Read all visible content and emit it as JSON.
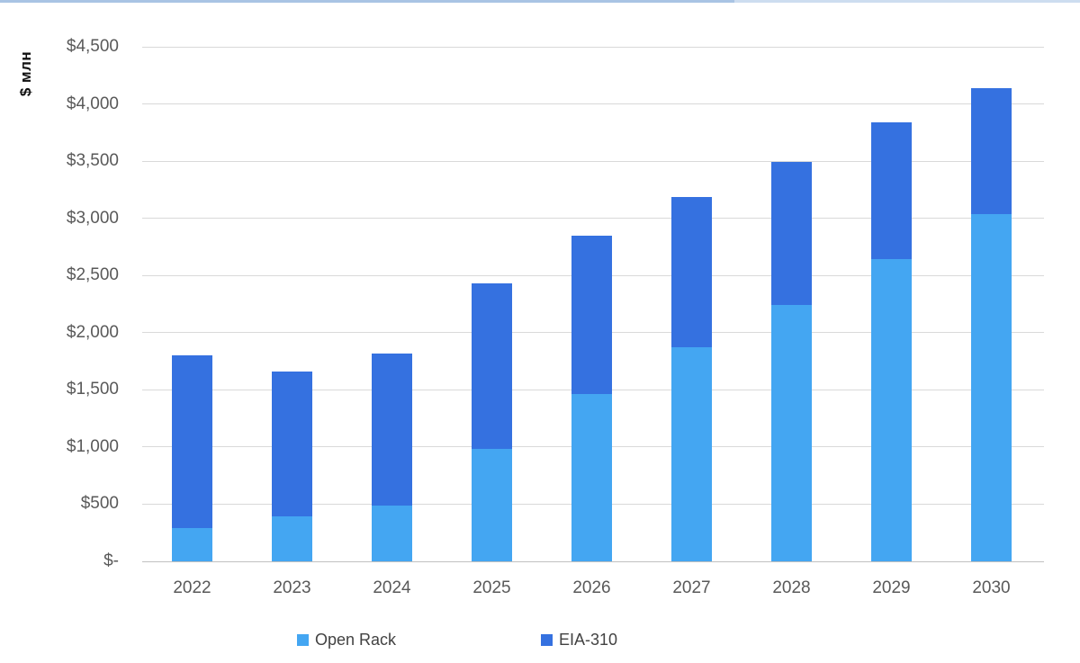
{
  "window": {
    "top_border_color_left": "#a9c4e4",
    "top_border_color_right": "#cdddf0"
  },
  "colors": {
    "grid": "#d9d9d9",
    "axis_line": "#c0c0c0",
    "tick_text": "#595959",
    "legend_text": "#424242",
    "axis_title_text": "#111111"
  },
  "chart_data": {
    "type": "bar",
    "stacked": true,
    "title": "",
    "ylabel": "$ млн",
    "xlabel": "",
    "categories": [
      "2022",
      "2023",
      "2024",
      "2025",
      "2026",
      "2027",
      "2028",
      "2029",
      "2030"
    ],
    "series": [
      {
        "name": "Open Rack",
        "color": "#44a6f2",
        "values": [
          290,
          390,
          490,
          980,
          1460,
          1870,
          2240,
          2640,
          3040
        ]
      },
      {
        "name": "EIA-310",
        "color": "#3571e0",
        "values": [
          1510,
          1270,
          1330,
          1450,
          1390,
          1320,
          1250,
          1200,
          1100
        ]
      }
    ],
    "totals": [
      1800,
      1660,
      1820,
      2430,
      2850,
      3190,
      3490,
      3840,
      4140
    ],
    "ylim": [
      0,
      4500
    ],
    "y_ticks": [
      0,
      500,
      1000,
      1500,
      2000,
      2500,
      3000,
      3500,
      4000,
      4500
    ],
    "y_tick_labels": [
      "$-",
      "$500",
      "$1,000",
      "$1,500",
      "$2,000",
      "$2,500",
      "$3,000",
      "$3,500",
      "$4,000",
      "$4,500"
    ],
    "grid": true,
    "legend_position": "bottom"
  }
}
